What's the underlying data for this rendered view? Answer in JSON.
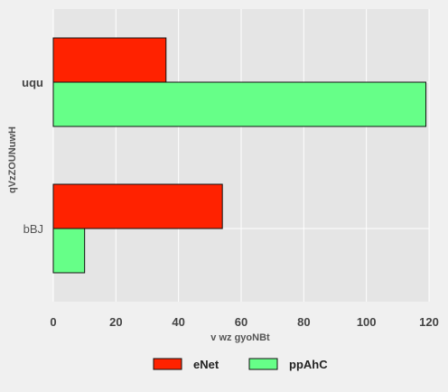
{
  "chart_data": {
    "type": "bar",
    "orientation": "horizontal",
    "categories": [
      "uqu",
      "bBJ"
    ],
    "series": [
      {
        "name": "eNet",
        "values": [
          36,
          54
        ],
        "color": "#ff2200"
      },
      {
        "name": "ppAhC",
        "values": [
          119,
          10
        ],
        "color": "#66ff88"
      }
    ],
    "xlabel": "v  wz gyoNBt",
    "ylabel": "qVzZOUNuwH",
    "xlim": [
      0,
      120
    ],
    "xticks": [
      "0",
      "20",
      "40",
      "60",
      "80",
      "100",
      "120"
    ],
    "grid": true,
    "legend_position": "bottom"
  },
  "style": {
    "plot_background": "#e5e5e5",
    "grid_color": "#ffffff",
    "page_background": "#f0f0f0"
  }
}
